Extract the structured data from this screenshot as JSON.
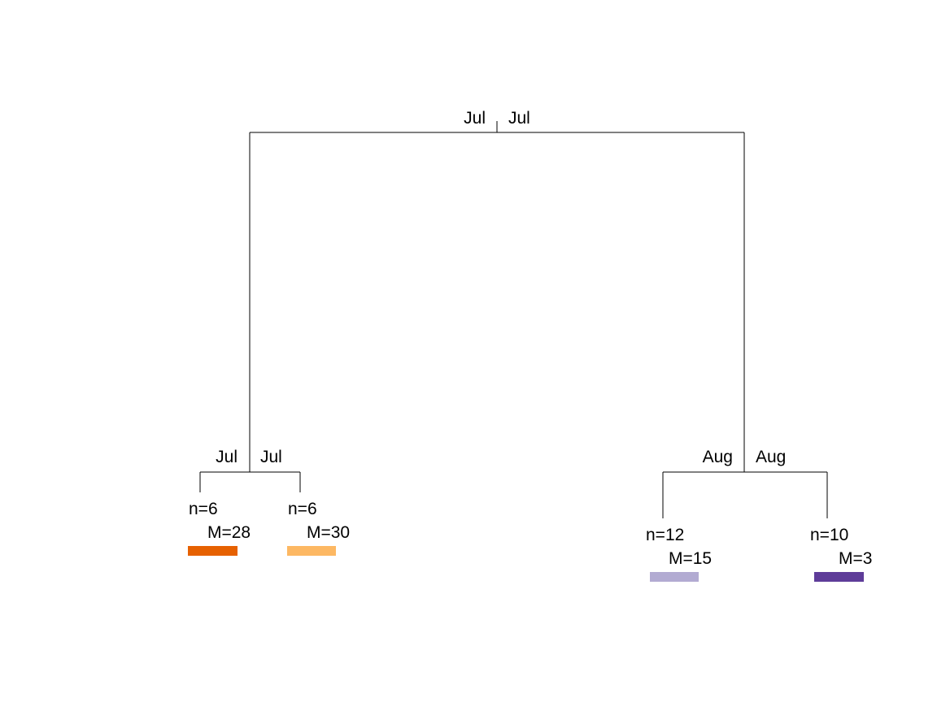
{
  "tree": {
    "root": {
      "split_left_label": "Jul",
      "split_right_label": "Jul"
    },
    "left_node": {
      "split_left_label": "Jul",
      "split_right_label": "Jul"
    },
    "right_node": {
      "split_left_label": "Aug",
      "split_right_label": "Aug"
    },
    "leaves": [
      {
        "n_label": "n=6",
        "m_label": "M=28",
        "color": "#e66101"
      },
      {
        "n_label": "n=6",
        "m_label": "M=30",
        "color": "#fdb863"
      },
      {
        "n_label": "n=12",
        "m_label": "M=15",
        "color": "#b2abd2"
      },
      {
        "n_label": "n=10",
        "m_label": "M=3",
        "color": "#5e3c99"
      }
    ]
  }
}
